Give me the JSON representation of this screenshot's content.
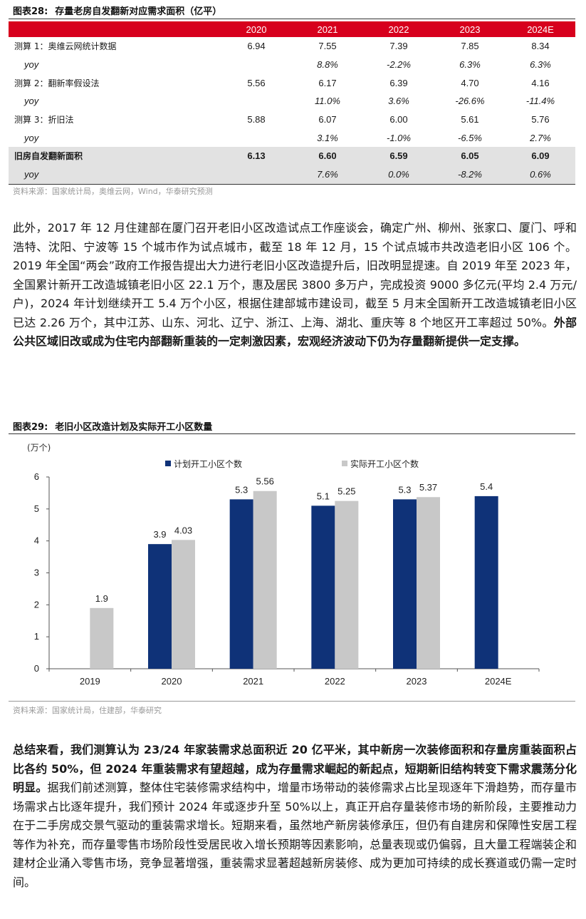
{
  "table": {
    "figure_label": "图表28:",
    "figure_title": "存量老房自发翻新对应需求面积（亿平）",
    "headers": [
      "",
      "2020",
      "2021",
      "2022",
      "2023",
      "2024E"
    ],
    "rows": [
      {
        "label": "测算 1：奥维云网统计数据",
        "values": [
          "6.94",
          "7.55",
          "7.39",
          "7.85",
          "8.34"
        ]
      },
      {
        "label": "yoy",
        "values": [
          "",
          "8.8%",
          "-2.2%",
          "6.3%",
          "6.3%"
        ]
      },
      {
        "label": "测算 2：翻新率假设法",
        "values": [
          "5.56",
          "6.17",
          "6.39",
          "4.70",
          "4.16"
        ]
      },
      {
        "label": "yoy",
        "values": [
          "",
          "11.0%",
          "3.6%",
          "-26.6%",
          "-11.4%"
        ]
      },
      {
        "label": "测算 3：折旧法",
        "values": [
          "5.88",
          "6.07",
          "6.00",
          "5.61",
          "5.76"
        ]
      },
      {
        "label": "yoy",
        "values": [
          "",
          "3.1%",
          "-1.0%",
          "-6.5%",
          "2.7%"
        ]
      },
      {
        "label": "旧房自发翻新面积",
        "values": [
          "6.13",
          "6.60",
          "6.59",
          "6.05",
          "6.09"
        ]
      },
      {
        "label": "yoy",
        "values": [
          "",
          "7.6%",
          "0.0%",
          "-8.2%",
          "0.6%"
        ]
      }
    ],
    "source": "资料来源：国家统计局，奥维云网，Wind，华泰研究预测"
  },
  "para1": {
    "normal": "此外，2017 年 12 月住建部在厦门召开老旧小区改造试点工作座谈会，确定广州、柳州、张家口、厦门、呼和浩特、沈阳、宁波等 15 个城市作为试点城市，截至 18 年 12 月，15 个试点城市共改造老旧小区 106 个。2019 年全国“两会”政府工作报告提出大力进行老旧小区改造提升后，旧改明显提速。自 2019 年至 2023 年，全国累计新开工改造城镇老旧小区 22.1 万个，惠及居民 3800 多万户，完成投资 9000 多亿元(平均 2.4 万元/户)，2024 年计划继续开工 5.4 万个小区，根据住建部城市建设司，截至 5 月末全国新开工改造城镇老旧小区已达 2.26 万个，其中江苏、山东、河北、辽宁、浙江、上海、湖北、重庆等 8 个地区开工率超过 50%。",
    "bold": "外部公共区域旧改或成为住宅内部翻新重装的一定刺激因素，宏观经济波动下仍为存量翻新提供一定支撑。"
  },
  "figure29": {
    "figure_label": "图表29:",
    "figure_title": "老旧小区改造计划及实际开工小区数量",
    "source": "资料来源：国家统计局，住建部，华泰研究"
  },
  "chart_data": {
    "type": "bar",
    "unit_label": "(万个)",
    "categories": [
      "2019",
      "2020",
      "2021",
      "2022",
      "2023",
      "2024E"
    ],
    "series": [
      {
        "name": "计划开工小区个数",
        "color": "#0f3278",
        "values": [
          null,
          3.9,
          5.3,
          5.1,
          5.3,
          5.4
        ],
        "labels": [
          "",
          "3.9",
          "5.3",
          "5.1",
          "5.3",
          "5.4"
        ]
      },
      {
        "name": "实际开工小区个数",
        "color": "#c8c8c8",
        "values": [
          1.9,
          4.03,
          5.56,
          5.25,
          5.37,
          null
        ],
        "labels": [
          "1.9",
          "4.03",
          "5.56",
          "5.25",
          "5.37",
          ""
        ]
      }
    ],
    "ylim": [
      0,
      6
    ],
    "yticks": [
      "0",
      "1",
      "2",
      "3",
      "4",
      "5",
      "6"
    ],
    "legend": "top",
    "grid": false
  },
  "para2": {
    "bold": "总结来看，我们测算认为 23/24 年家装需求总面积近 20 亿平米，其中新房一次装修面积和存量房重装面积占比各约 50%，但 2024 年重装需求有望超越，成为存量需求崛起的新起点，短期新旧结构转变下需求震荡分化明显。",
    "normal": "据我们前述测算，整体住宅装修需求结构中，增量市场带动的装修需求占比呈现逐年下滑趋势，而存量市场需求占比逐年提升，我们预计 2024 年或逐步升至 50%以上，真正开启存量装修市场的新阶段，主要推动力在于二手房成交景气驱动的重装需求增长。短期来看，虽然地产新房装修承压，但仍有自建房和保障性安居工程等作为补充，而存量零售市场阶段性受居民收入增长预期等因素影响，总量表现或仍偏弱，且大量工程端装企和建材企业涌入零售市场，竞争显著增强，重装需求显著超越新房装修、成为更加可持续的成长赛道或仍需一定时间。"
  }
}
